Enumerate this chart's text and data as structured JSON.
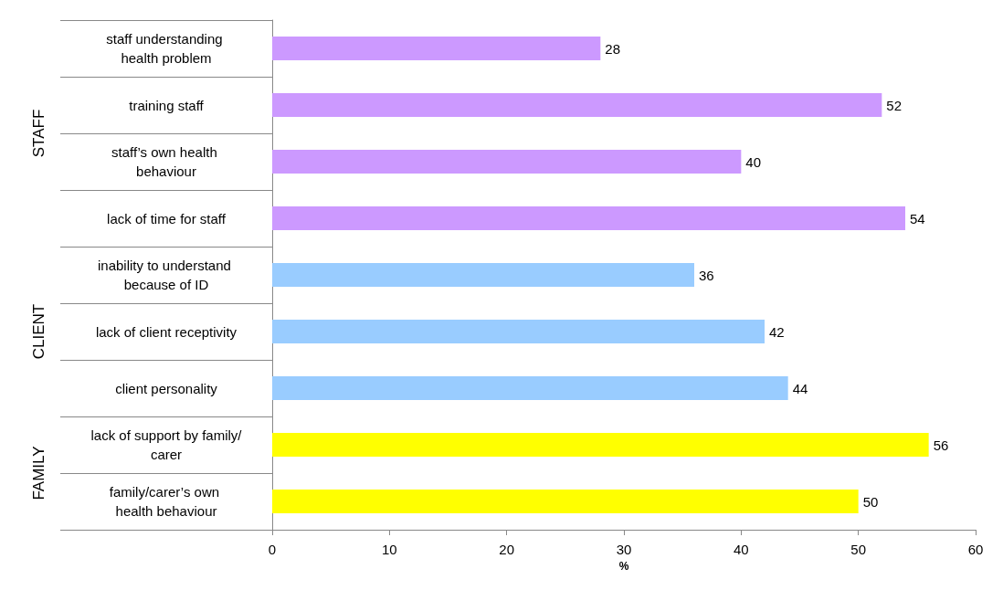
{
  "chart_data": {
    "type": "bar",
    "orientation": "horizontal",
    "stacked": true,
    "grid": false,
    "data_labels": true,
    "xlabel": "%",
    "categories": [
      "staff understanding health problem",
      "training staff",
      "staff’s own health behaviour",
      "lack of time for staff",
      "inability to understand because of ID",
      "lack of client receptivity",
      "client personality",
      "lack of support by family/carer",
      "family/carer’s own health behaviour"
    ],
    "series": [
      {
        "color": "#cc99ff",
        "values": [
          28,
          52,
          40,
          54,
          null,
          null,
          null,
          null,
          null
        ]
      },
      {
        "color": "#99ccff",
        "values": [
          null,
          null,
          null,
          null,
          36,
          42,
          44,
          null,
          null
        ]
      },
      {
        "color": "#ffff00",
        "values": [
          null,
          null,
          null,
          null,
          null,
          null,
          null,
          56,
          50
        ]
      }
    ],
    "annotations": [
      "STAFF",
      "CLIENT",
      "FAMILY"
    ],
    "xlim": [
      0,
      60
    ],
    "xticks": [
      0,
      10,
      20,
      30,
      40,
      50,
      60
    ]
  }
}
